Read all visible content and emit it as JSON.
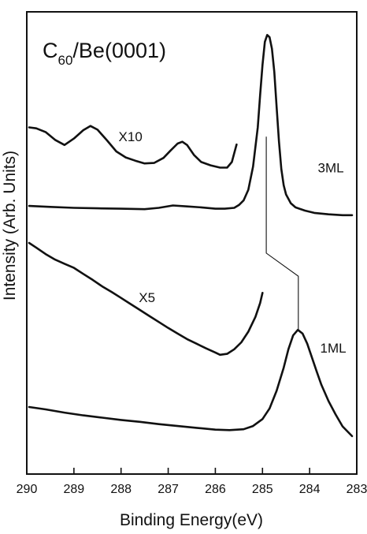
{
  "chart_data": {
    "type": "line",
    "title": {
      "pre": "C",
      "sub": "60",
      "post": "/Be(0001)"
    },
    "xlabel": "Binding Energy(eV)",
    "ylabel": "Intensity (Arb. Units)",
    "xlim": [
      290,
      283
    ],
    "x_reversed": true,
    "ylim": [
      0,
      100
    ],
    "y_ticks_labeled": false,
    "x_ticks": [
      290,
      289,
      288,
      287,
      286,
      285,
      284,
      283
    ],
    "color": "#111111",
    "series": [
      {
        "name": "3ML",
        "label": "3ML",
        "points": [
          [
            289.95,
            58.0
          ],
          [
            289.5,
            57.8
          ],
          [
            289.0,
            57.6
          ],
          [
            288.5,
            57.5
          ],
          [
            288.0,
            57.4
          ],
          [
            287.5,
            57.3
          ],
          [
            287.2,
            57.6
          ],
          [
            286.9,
            58.1
          ],
          [
            286.6,
            57.9
          ],
          [
            286.3,
            57.7
          ],
          [
            286.0,
            57.4
          ],
          [
            285.8,
            57.4
          ],
          [
            285.6,
            57.6
          ],
          [
            285.5,
            58.2
          ],
          [
            285.4,
            59.2
          ],
          [
            285.3,
            61.5
          ],
          [
            285.2,
            66.5
          ],
          [
            285.1,
            75.0
          ],
          [
            285.05,
            82.0
          ],
          [
            285.0,
            88.5
          ],
          [
            284.95,
            93.5
          ],
          [
            284.9,
            95.0
          ],
          [
            284.85,
            94.5
          ],
          [
            284.8,
            92.0
          ],
          [
            284.75,
            87.0
          ],
          [
            284.7,
            79.5
          ],
          [
            284.65,
            72.0
          ],
          [
            284.6,
            66.0
          ],
          [
            284.55,
            62.5
          ],
          [
            284.5,
            60.5
          ],
          [
            284.4,
            58.6
          ],
          [
            284.3,
            57.7
          ],
          [
            284.1,
            57.0
          ],
          [
            283.9,
            56.5
          ],
          [
            283.6,
            56.2
          ],
          [
            283.3,
            56.0
          ],
          [
            283.1,
            56.0
          ]
        ]
      },
      {
        "name": "3ML X10",
        "label": "X10",
        "points": [
          [
            289.95,
            75.0
          ],
          [
            289.8,
            74.8
          ],
          [
            289.6,
            74.0
          ],
          [
            289.4,
            72.3
          ],
          [
            289.2,
            71.2
          ],
          [
            289.0,
            72.6
          ],
          [
            288.8,
            74.4
          ],
          [
            288.65,
            75.3
          ],
          [
            288.5,
            74.5
          ],
          [
            288.3,
            72.2
          ],
          [
            288.1,
            69.8
          ],
          [
            287.9,
            68.5
          ],
          [
            287.7,
            67.8
          ],
          [
            287.5,
            67.2
          ],
          [
            287.3,
            67.3
          ],
          [
            287.1,
            68.4
          ],
          [
            286.95,
            70.0
          ],
          [
            286.8,
            71.5
          ],
          [
            286.7,
            71.9
          ],
          [
            286.6,
            71.2
          ],
          [
            286.45,
            69.0
          ],
          [
            286.3,
            67.5
          ],
          [
            286.1,
            66.8
          ],
          [
            285.9,
            66.3
          ],
          [
            285.75,
            66.3
          ],
          [
            285.65,
            67.5
          ],
          [
            285.55,
            71.3
          ]
        ]
      },
      {
        "name": "1ML",
        "label": "1ML",
        "points": [
          [
            289.95,
            14.5
          ],
          [
            289.6,
            14.0
          ],
          [
            289.2,
            13.3
          ],
          [
            288.8,
            12.7
          ],
          [
            288.4,
            12.2
          ],
          [
            288.0,
            11.7
          ],
          [
            287.6,
            11.3
          ],
          [
            287.2,
            10.8
          ],
          [
            286.8,
            10.4
          ],
          [
            286.4,
            10.0
          ],
          [
            286.0,
            9.6
          ],
          [
            285.7,
            9.5
          ],
          [
            285.4,
            9.7
          ],
          [
            285.2,
            10.4
          ],
          [
            285.0,
            11.9
          ],
          [
            284.85,
            14.2
          ],
          [
            284.7,
            18.0
          ],
          [
            284.55,
            23.0
          ],
          [
            284.45,
            27.0
          ],
          [
            284.35,
            30.0
          ],
          [
            284.25,
            31.2
          ],
          [
            284.15,
            30.4
          ],
          [
            284.05,
            28.2
          ],
          [
            283.95,
            25.2
          ],
          [
            283.85,
            22.2
          ],
          [
            283.75,
            19.3
          ],
          [
            283.6,
            15.8
          ],
          [
            283.45,
            12.9
          ],
          [
            283.3,
            10.3
          ],
          [
            283.1,
            8.2
          ]
        ]
      },
      {
        "name": "1ML X5",
        "label": "X5",
        "points": [
          [
            289.95,
            50.0
          ],
          [
            289.8,
            49.0
          ],
          [
            289.6,
            47.6
          ],
          [
            289.4,
            46.4
          ],
          [
            289.2,
            45.5
          ],
          [
            289.0,
            44.6
          ],
          [
            288.8,
            43.3
          ],
          [
            288.6,
            42.0
          ],
          [
            288.4,
            40.6
          ],
          [
            288.2,
            39.4
          ],
          [
            288.0,
            38.1
          ],
          [
            287.8,
            36.8
          ],
          [
            287.6,
            35.5
          ],
          [
            287.4,
            34.2
          ],
          [
            287.2,
            32.9
          ],
          [
            287.0,
            31.6
          ],
          [
            286.8,
            30.4
          ],
          [
            286.6,
            29.2
          ],
          [
            286.4,
            28.2
          ],
          [
            286.2,
            27.2
          ],
          [
            286.0,
            26.3
          ],
          [
            285.9,
            25.8
          ],
          [
            285.75,
            26.0
          ],
          [
            285.6,
            27.0
          ],
          [
            285.45,
            28.5
          ],
          [
            285.3,
            30.8
          ],
          [
            285.15,
            34.0
          ],
          [
            285.05,
            37.0
          ],
          [
            285.0,
            39.2
          ]
        ]
      }
    ],
    "annotations": [
      {
        "label": "X10",
        "x": 287.8,
        "y": 72.0
      },
      {
        "label": "3ML",
        "x": 283.55,
        "y": 65.3
      },
      {
        "label": "X5",
        "x": 287.45,
        "y": 37.2
      },
      {
        "label": "1ML",
        "x": 283.5,
        "y": 26.3
      }
    ],
    "peak_connector": [
      [
        284.92,
        73.0
      ],
      [
        284.92,
        47.8
      ],
      [
        284.24,
        42.8
      ],
      [
        284.24,
        31.0
      ]
    ]
  }
}
